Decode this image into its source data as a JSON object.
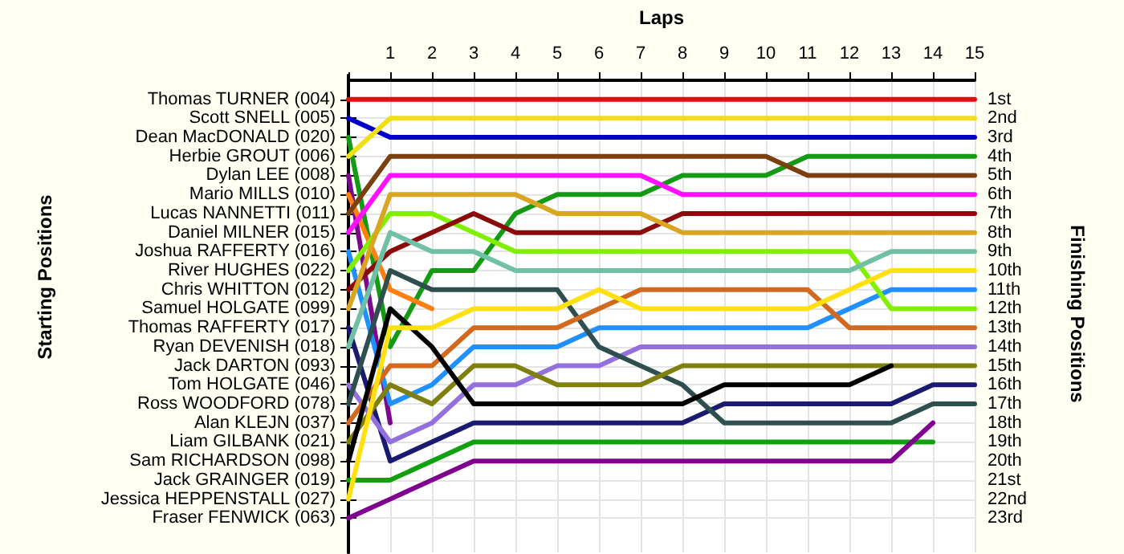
{
  "chart_data": {
    "type": "line",
    "xlabel": "Laps",
    "ylabel": "Finishing Positions",
    "annotations": [
      "Starting Positions"
    ],
    "x": [
      0,
      1,
      2,
      3,
      4,
      5,
      6,
      7,
      8,
      9,
      10,
      11,
      12,
      13,
      14,
      15
    ],
    "xlim": [
      0,
      15
    ],
    "xticks": [
      {
        "value": 0,
        "label": null
      },
      1,
      2,
      3,
      4,
      5,
      6,
      7,
      8,
      9,
      10,
      11,
      12,
      13,
      14,
      15
    ],
    "ylim": [
      24.8,
      -0.25
    ],
    "yticks": [
      {
        "value": 1,
        "label": "1st"
      },
      {
        "value": 2,
        "label": "2nd"
      },
      {
        "value": 3,
        "label": "3rd"
      },
      {
        "value": 4,
        "label": "4th"
      },
      {
        "value": 5,
        "label": "5th"
      },
      {
        "value": 6,
        "label": "6th"
      },
      {
        "value": 7,
        "label": "7th"
      },
      {
        "value": 8,
        "label": "8th"
      },
      {
        "value": 9,
        "label": "9th"
      },
      {
        "value": 10,
        "label": "10th"
      },
      {
        "value": 11,
        "label": "11th"
      },
      {
        "value": 12,
        "label": "12th"
      },
      {
        "value": 13,
        "label": "13th"
      },
      {
        "value": 14,
        "label": "14th"
      },
      {
        "value": 15,
        "label": "15th"
      },
      {
        "value": 16,
        "label": "16th"
      },
      {
        "value": 17,
        "label": "17th"
      },
      {
        "value": 18,
        "label": "18th"
      },
      {
        "value": 19,
        "label": "19th"
      },
      {
        "value": 20,
        "label": "20th"
      },
      {
        "value": 21,
        "label": "21st"
      },
      {
        "value": 22,
        "label": "22nd"
      },
      {
        "value": 23,
        "label": "23rd"
      }
    ],
    "y2_categories": [
      "Thomas TURNER (004)",
      "Scott SNELL (005)",
      "Dean MacDONALD (020)",
      "Herbie GROUT (006)",
      "Dylan LEE (008)",
      "Mario MILLS (010)",
      "Lucas NANNETTI (011)",
      "Daniel MILNER (015)",
      "Joshua RAFFERTY (016)",
      "River HUGHES (022)",
      "Chris WHITTON (012)",
      "Samuel HOLGATE (099)",
      "Thomas RAFFERTY (017)",
      "Ryan DEVENISH (018)",
      "Jack DARTON (093)",
      "Tom HOLGATE (046)",
      "Ross WOODFORD (078)",
      "Alan KLEJN (037)",
      "Liam GILBANK (021)",
      "Sam RICHARDSON (098)",
      "Jack GRAINGER (019)",
      "Jessica HEPPENSTALL (027)",
      "Fraser FENWICK (063)"
    ],
    "grid": true,
    "marker": "none",
    "line_style": "solid",
    "series": [
      {
        "color": "#e01010",
        "values": [
          1,
          1,
          1,
          1,
          1,
          1,
          1,
          1,
          1,
          1,
          1,
          1,
          1,
          1,
          1,
          1
        ]
      },
      {
        "color": "#0000c8",
        "values": [
          2,
          3,
          3,
          3,
          3,
          3,
          3,
          3,
          3,
          3,
          3,
          3,
          3,
          3,
          3,
          3
        ]
      },
      {
        "color": "#149a14",
        "values": [
          3,
          14,
          10,
          10,
          7,
          6,
          6,
          6,
          5,
          5,
          5,
          4,
          4,
          4,
          4,
          4
        ]
      },
      {
        "color": "#f0e010",
        "values": [
          4,
          2,
          2,
          2,
          2,
          2,
          2,
          2,
          2,
          2,
          2,
          2,
          2,
          2,
          2,
          2
        ]
      },
      {
        "color": "#7a0a8a",
        "values": [
          5,
          18,
          null,
          null,
          null,
          null,
          null,
          null,
          null,
          null,
          null,
          null,
          null,
          null,
          null,
          null
        ]
      },
      {
        "color": "#ff7f10",
        "values": [
          6,
          11,
          12,
          null,
          null,
          null,
          null,
          null,
          null,
          null,
          null,
          null,
          null,
          null,
          null,
          null
        ]
      },
      {
        "color": "#7b4010",
        "values": [
          7,
          4,
          4,
          4,
          4,
          4,
          4,
          4,
          4,
          4,
          4,
          5,
          5,
          5,
          5,
          5
        ]
      },
      {
        "color": "#ff10ff",
        "values": [
          8,
          5,
          5,
          5,
          5,
          5,
          5,
          5,
          6,
          6,
          6,
          6,
          6,
          6,
          6,
          6
        ]
      },
      {
        "color": "#2090ff",
        "values": [
          9,
          17,
          16,
          14,
          14,
          14,
          13,
          13,
          13,
          13,
          13,
          13,
          12,
          11,
          11,
          11
        ]
      },
      {
        "color": "#80f000",
        "values": [
          10,
          7,
          7,
          8,
          9,
          9,
          9,
          9,
          9,
          9,
          9,
          9,
          9,
          12,
          12,
          12
        ]
      },
      {
        "color": "#8b0a0a",
        "values": [
          11,
          9,
          8,
          7,
          8,
          8,
          8,
          8,
          7,
          7,
          7,
          7,
          7,
          7,
          7,
          7
        ]
      },
      {
        "color": "#daa520",
        "values": [
          12,
          6,
          6,
          6,
          6,
          7,
          7,
          7,
          8,
          8,
          8,
          8,
          8,
          8,
          8,
          8
        ]
      },
      {
        "color": "#1a1a70",
        "values": [
          13,
          20,
          19,
          18,
          18,
          18,
          18,
          18,
          18,
          17,
          17,
          17,
          17,
          17,
          16,
          16
        ]
      },
      {
        "color": "#70c0a8",
        "values": [
          14,
          8,
          9,
          9,
          10,
          10,
          10,
          10,
          10,
          10,
          10,
          10,
          10,
          9,
          9,
          9
        ]
      },
      {
        "color": "#9370db",
        "values": [
          16,
          19,
          18,
          16,
          16,
          15,
          15,
          14,
          14,
          14,
          14,
          14,
          14,
          14,
          14,
          14
        ]
      },
      {
        "color": "#2f4f4f",
        "values": [
          17,
          10,
          11,
          11,
          11,
          11,
          14,
          15,
          16,
          18,
          18,
          18,
          18,
          18,
          17,
          17
        ]
      },
      {
        "color": "#d2691e",
        "values": [
          18,
          15,
          15,
          13,
          13,
          13,
          12,
          11,
          11,
          11,
          11,
          11,
          13,
          13,
          13,
          13
        ]
      },
      {
        "color": "#808010",
        "values": [
          19,
          16,
          17,
          15,
          15,
          16,
          16,
          16,
          15,
          15,
          15,
          15,
          15,
          15,
          15,
          15
        ]
      },
      {
        "color": "#000000",
        "values": [
          20,
          12,
          14,
          17,
          17,
          17,
          17,
          17,
          17,
          16,
          16,
          16,
          16,
          15,
          null,
          null
        ]
      },
      {
        "color": "#10a010",
        "values": [
          21,
          21,
          20,
          19,
          19,
          19,
          19,
          19,
          19,
          19,
          19,
          19,
          19,
          19,
          19,
          null
        ]
      },
      {
        "color": "#ffe010",
        "values": [
          22,
          13,
          13,
          12,
          12,
          12,
          11,
          12,
          12,
          12,
          12,
          12,
          11,
          10,
          10,
          10
        ]
      },
      {
        "color": "#800090",
        "values": [
          23,
          22,
          21,
          20,
          20,
          20,
          20,
          20,
          20,
          20,
          20,
          20,
          20,
          20,
          18,
          null
        ]
      }
    ]
  }
}
